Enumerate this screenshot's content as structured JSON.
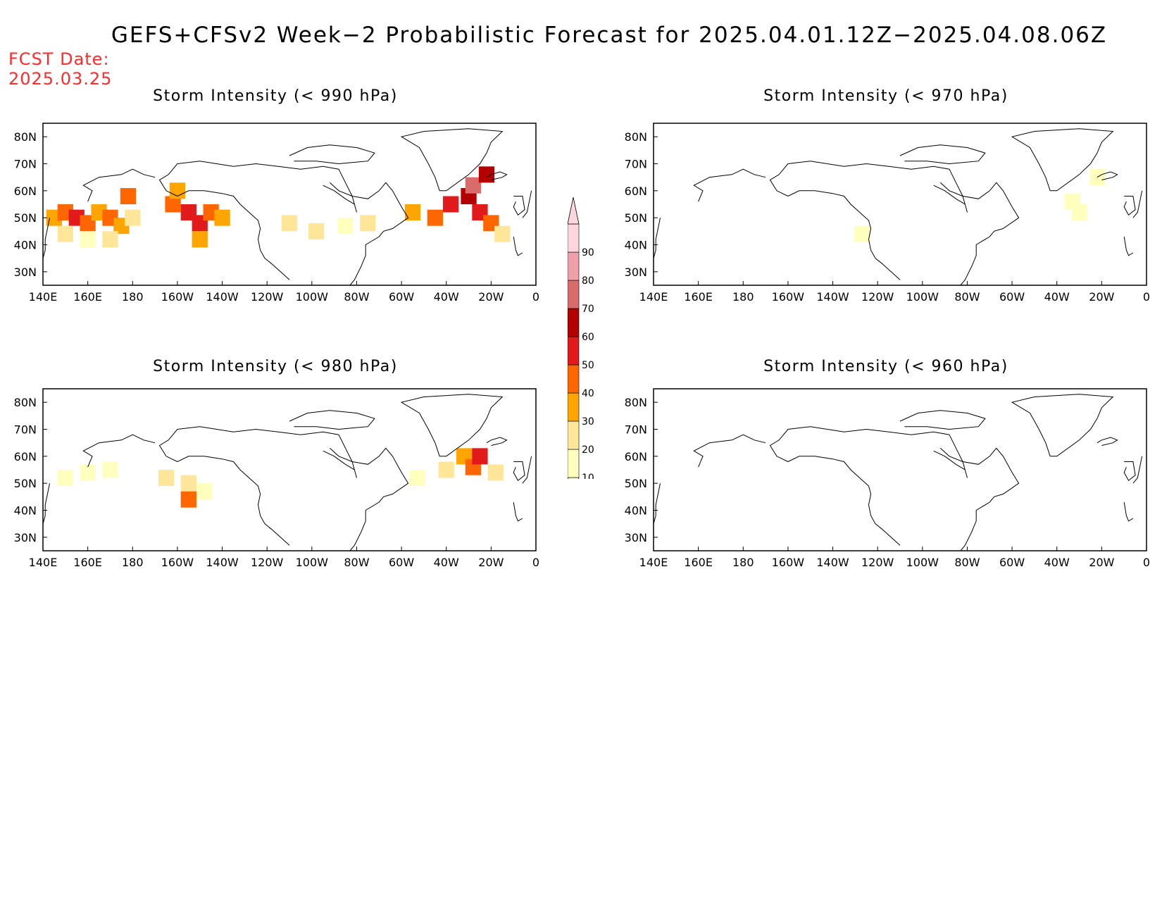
{
  "title": "GEFS+CFSv2 Week−2 Probabilistic Forecast for 2025.04.01.12Z−2025.04.08.06Z",
  "fcst_label": "FCST Date:",
  "fcst_date": "2025.03.25",
  "x_ticks": [
    "140E",
    "160E",
    "180",
    "160W",
    "140W",
    "120W",
    "100W",
    "80W",
    "60W",
    "40W",
    "20W",
    "0"
  ],
  "y_ticks": [
    "80N",
    "70N",
    "60N",
    "50N",
    "40N",
    "30N"
  ],
  "y_tick_values": [
    80,
    70,
    60,
    50,
    40,
    30
  ],
  "lon_range": [
    140,
    360
  ],
  "lat_range": [
    25,
    85
  ],
  "colorbar": {
    "levels": [
      "10",
      "20",
      "30",
      "40",
      "50",
      "60",
      "70",
      "80",
      "90"
    ],
    "colors": [
      "#ffffbe",
      "#ffe699",
      "#ffa500",
      "#ff6600",
      "#e31a1c",
      "#b30000",
      "#d96b6b",
      "#f0a0a8",
      "#ffd6de"
    ]
  },
  "panels": [
    {
      "title": "Storm Intensity (< 990 hPa)",
      "cells": [
        {
          "lon": 145,
          "lat": 50,
          "level": 3
        },
        {
          "lon": 150,
          "lat": 52,
          "level": 4
        },
        {
          "lon": 155,
          "lat": 50,
          "level": 5
        },
        {
          "lon": 160,
          "lat": 48,
          "level": 4
        },
        {
          "lon": 165,
          "lat": 52,
          "level": 3
        },
        {
          "lon": 170,
          "lat": 50,
          "level": 4
        },
        {
          "lon": 175,
          "lat": 47,
          "level": 3
        },
        {
          "lon": 180,
          "lat": 50,
          "level": 2
        },
        {
          "lon": 150,
          "lat": 44,
          "level": 2
        },
        {
          "lon": 160,
          "lat": 42,
          "level": 1
        },
        {
          "lon": 170,
          "lat": 42,
          "level": 2
        },
        {
          "lon": 178,
          "lat": 58,
          "level": 4
        },
        {
          "lon": 198,
          "lat": 55,
          "level": 4
        },
        {
          "lon": 205,
          "lat": 52,
          "level": 5
        },
        {
          "lon": 210,
          "lat": 48,
          "level": 5
        },
        {
          "lon": 215,
          "lat": 52,
          "level": 4
        },
        {
          "lon": 220,
          "lat": 50,
          "level": 3
        },
        {
          "lon": 210,
          "lat": 42,
          "level": 3
        },
        {
          "lon": 200,
          "lat": 60,
          "level": 3
        },
        {
          "lon": 250,
          "lat": 48,
          "level": 2
        },
        {
          "lon": 262,
          "lat": 45,
          "level": 2
        },
        {
          "lon": 275,
          "lat": 47,
          "level": 1
        },
        {
          "lon": 285,
          "lat": 48,
          "level": 2
        },
        {
          "lon": 305,
          "lat": 52,
          "level": 3
        },
        {
          "lon": 315,
          "lat": 50,
          "level": 4
        },
        {
          "lon": 322,
          "lat": 55,
          "level": 5
        },
        {
          "lon": 330,
          "lat": 58,
          "level": 6
        },
        {
          "lon": 335,
          "lat": 52,
          "level": 5
        },
        {
          "lon": 340,
          "lat": 48,
          "level": 4
        },
        {
          "lon": 345,
          "lat": 44,
          "level": 2
        },
        {
          "lon": 332,
          "lat": 62,
          "level": 7
        },
        {
          "lon": 338,
          "lat": 66,
          "level": 6
        }
      ]
    },
    {
      "title": "Storm Intensity (< 970 hPa)",
      "cells": [
        {
          "lon": 327,
          "lat": 56,
          "level": 1
        },
        {
          "lon": 330,
          "lat": 52,
          "level": 1
        },
        {
          "lon": 233,
          "lat": 44,
          "level": 1
        },
        {
          "lon": 338,
          "lat": 65,
          "level": 1
        }
      ]
    },
    {
      "title": "Storm Intensity (< 980 hPa)",
      "cells": [
        {
          "lon": 150,
          "lat": 52,
          "level": 1
        },
        {
          "lon": 160,
          "lat": 54,
          "level": 1
        },
        {
          "lon": 170,
          "lat": 55,
          "level": 1
        },
        {
          "lon": 195,
          "lat": 52,
          "level": 2
        },
        {
          "lon": 205,
          "lat": 50,
          "level": 2
        },
        {
          "lon": 212,
          "lat": 47,
          "level": 1
        },
        {
          "lon": 205,
          "lat": 44,
          "level": 4
        },
        {
          "lon": 307,
          "lat": 52,
          "level": 1
        },
        {
          "lon": 320,
          "lat": 55,
          "level": 2
        },
        {
          "lon": 328,
          "lat": 60,
          "level": 3
        },
        {
          "lon": 332,
          "lat": 56,
          "level": 4
        },
        {
          "lon": 335,
          "lat": 60,
          "level": 5
        },
        {
          "lon": 342,
          "lat": 54,
          "level": 2
        }
      ]
    },
    {
      "title": "Storm Intensity (< 960 hPa)",
      "cells": []
    }
  ]
}
